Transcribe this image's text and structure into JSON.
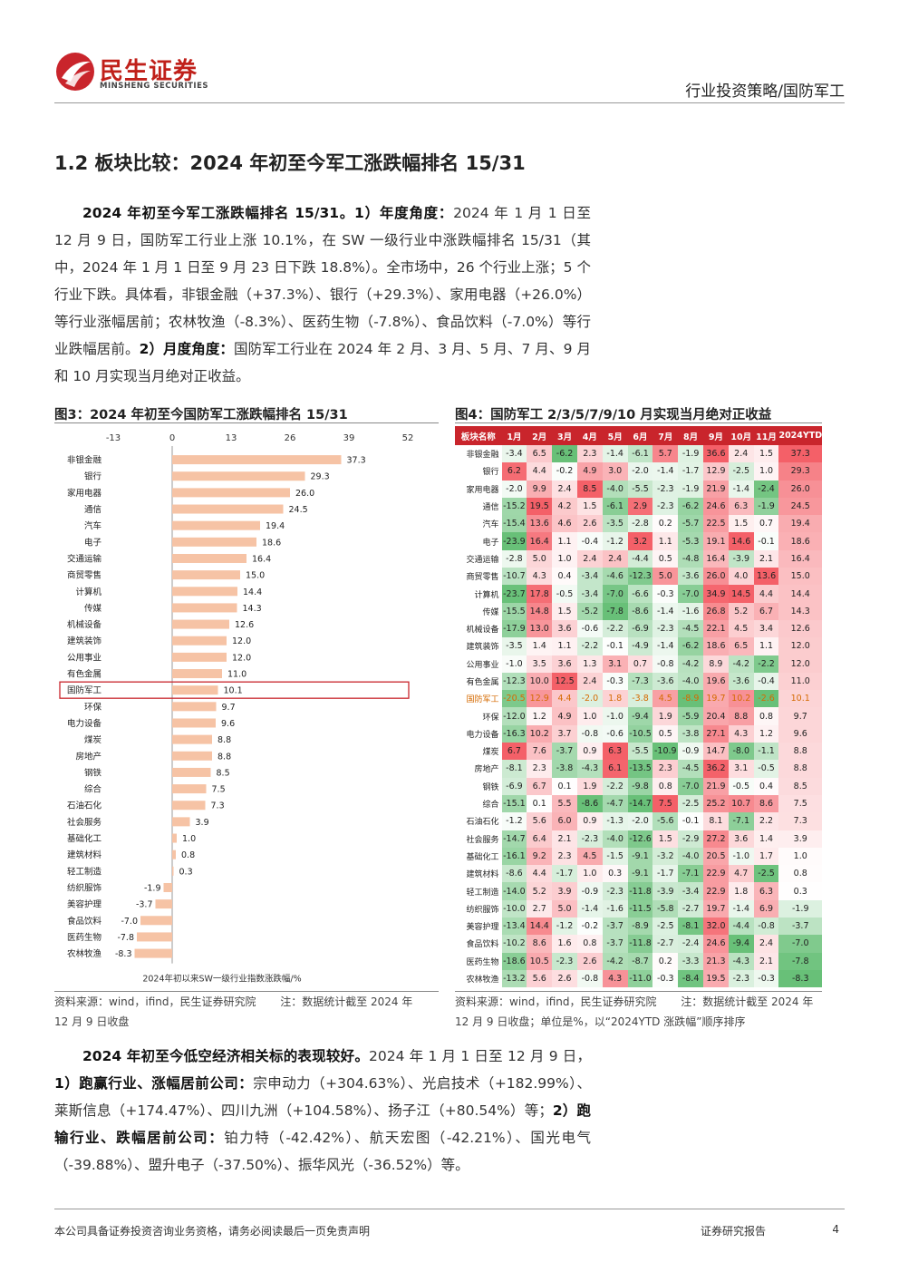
{
  "header": {
    "brand_cn": "民生证券",
    "brand_en": "MINSHENG SECURITIES",
    "category": "行业投资策略/国防军工"
  },
  "section_title": "1.2 板块比较：2024 年初至今军工涨跌幅排名 15/31",
  "para1": {
    "lead": "2024 年初至今军工涨跌幅排名 15/31。1）年度角度：",
    "body": "2024 年 1 月 1 日至 12 月 9 日，国防军工行业上涨 10.1%，在 SW 一级行业中涨跌幅排名 15/31（其中，2024 年 1 月 1 日至 9 月 23 日下跌 18.8%）。全市场中，26 个行业上涨；5 个行业下跌。具体看，非银金融（+37.3%）、银行（+29.3%）、家用电器（+26.0%）等行业涨幅居前；农林牧渔（-8.3%）、医药生物（-7.8%）、食品饮料（-7.0%）等行业跌幅居前。",
    "lead2": "2）月度角度：",
    "body2": "国防军工行业在 2024 年 2 月、3 月、5 月、7 月、9 月和 10 月实现当月绝对正收益。"
  },
  "fig3": {
    "title": "图3：2024 年初至今国防军工涨跌幅排名 15/31",
    "source": "资料来源：wind，ifind，民生证券研究院",
    "note": "注：数据统计截至 2024 年 12 月 9 日收盘"
  },
  "fig4": {
    "title": "图4：国防军工 2/3/5/7/9/10 月实现当月绝对正收益",
    "source": "资料来源：wind，ifind，民生证券研究院",
    "note": "注：数据统计截至 2024 年 12 月 9 日收盘；单位是%，以“2024YTD 涨跌幅”顺序排序"
  },
  "chart_data": [
    {
      "type": "bar",
      "orientation": "horizontal",
      "xlabel": "2024年初以来SW一级行业指数涨跌幅/%",
      "xlim": [
        -13,
        52
      ],
      "xticks": [
        -13,
        0,
        13,
        26,
        39,
        52
      ],
      "bar_color": "#f6c3a5",
      "highlight_color": "#c9252c",
      "highlight": "国防军工",
      "categories": [
        "非银金融",
        "银行",
        "家用电器",
        "通信",
        "汽车",
        "电子",
        "交通运输",
        "商贸零售",
        "计算机",
        "传媒",
        "机械设备",
        "建筑装饰",
        "公用事业",
        "有色金属",
        "国防军工",
        "环保",
        "电力设备",
        "煤炭",
        "房地产",
        "钢铁",
        "综合",
        "石油石化",
        "社会服务",
        "基础化工",
        "建筑材料",
        "轻工制造",
        "纺织服饰",
        "美容护理",
        "食品饮料",
        "医药生物",
        "农林牧渔"
      ],
      "values": [
        37.3,
        29.3,
        26.0,
        24.5,
        19.4,
        18.6,
        16.4,
        15.0,
        14.4,
        14.3,
        12.6,
        12.0,
        12.0,
        11.0,
        10.1,
        9.7,
        9.6,
        8.8,
        8.8,
        8.5,
        7.5,
        7.3,
        3.9,
        1.0,
        0.8,
        0.3,
        -1.9,
        -3.7,
        -7.0,
        -7.8,
        -8.3
      ]
    },
    {
      "type": "heatmap",
      "columns": [
        "板块名称",
        "1月",
        "2月",
        "3月",
        "4月",
        "5月",
        "6月",
        "7月",
        "8月",
        "9月",
        "10月",
        "11月",
        "2024YTD"
      ],
      "highlight_row": "国防军工",
      "rows": [
        [
          "非银金融",
          -3.4,
          6.5,
          -6.2,
          2.3,
          -1.4,
          -6.1,
          5.7,
          -1.9,
          36.6,
          2.4,
          1.5,
          37.3
        ],
        [
          "银行",
          6.2,
          4.4,
          -0.2,
          4.9,
          3.0,
          -2.0,
          -1.4,
          -1.7,
          12.9,
          -2.5,
          1.0,
          29.3
        ],
        [
          "家用电器",
          -2.0,
          9.9,
          2.4,
          8.5,
          -4.0,
          -5.5,
          -2.3,
          -1.9,
          21.9,
          -1.4,
          -2.4,
          26.0
        ],
        [
          "通信",
          -15.2,
          19.5,
          4.2,
          1.5,
          -6.1,
          2.9,
          -2.3,
          -6.2,
          24.6,
          6.3,
          -1.9,
          24.5
        ],
        [
          "汽车",
          -15.4,
          13.6,
          4.6,
          2.6,
          -3.5,
          -2.8,
          0.2,
          -5.7,
          22.5,
          1.5,
          0.7,
          19.4
        ],
        [
          "电子",
          -23.9,
          16.4,
          1.1,
          -0.4,
          -1.2,
          3.2,
          1.1,
          -5.3,
          19.1,
          14.6,
          -0.1,
          18.6
        ],
        [
          "交通运输",
          -2.8,
          5.0,
          1.0,
          2.4,
          2.4,
          -4.4,
          0.5,
          -4.8,
          16.4,
          -3.9,
          2.1,
          16.4
        ],
        [
          "商贸零售",
          -10.7,
          4.3,
          0.4,
          -3.4,
          -4.6,
          -12.3,
          5.0,
          -3.6,
          26.0,
          4.0,
          13.6,
          15.0
        ],
        [
          "计算机",
          -23.7,
          17.8,
          -0.5,
          -3.4,
          -7.0,
          -6.6,
          -0.3,
          -7.0,
          34.9,
          14.5,
          4.4,
          14.4
        ],
        [
          "传媒",
          -15.5,
          14.8,
          1.5,
          -5.2,
          -7.8,
          -8.6,
          -1.4,
          -1.6,
          26.8,
          5.2,
          6.7,
          14.3
        ],
        [
          "机械设备",
          -17.9,
          13.0,
          3.6,
          -0.6,
          -2.2,
          -6.9,
          -2.3,
          -4.5,
          22.1,
          4.5,
          3.4,
          12.6
        ],
        [
          "建筑装饰",
          -3.5,
          1.4,
          1.1,
          -2.2,
          -0.1,
          -4.9,
          -1.4,
          -6.2,
          18.6,
          6.5,
          1.1,
          12.0
        ],
        [
          "公用事业",
          -1.0,
          3.5,
          3.6,
          1.3,
          3.1,
          0.7,
          -0.8,
          -4.2,
          8.9,
          -4.2,
          -2.2,
          12.0
        ],
        [
          "有色金属",
          -12.3,
          10.0,
          12.5,
          2.4,
          -0.3,
          -7.3,
          -3.6,
          -4.0,
          19.6,
          -3.6,
          -0.4,
          11.0
        ],
        [
          "国防军工",
          -20.5,
          12.9,
          4.4,
          -2.0,
          1.8,
          -3.8,
          4.5,
          -8.9,
          19.7,
          10.2,
          -2.6,
          10.1
        ],
        [
          "环保",
          -12.0,
          1.2,
          4.9,
          1.0,
          -1.0,
          -9.4,
          1.9,
          -5.9,
          20.4,
          8.8,
          0.8,
          9.7
        ],
        [
          "电力设备",
          -16.3,
          10.2,
          3.7,
          -0.8,
          -0.6,
          -10.5,
          0.5,
          -3.8,
          27.1,
          4.3,
          1.2,
          9.6
        ],
        [
          "煤炭",
          6.7,
          7.6,
          -3.7,
          0.9,
          6.3,
          -5.5,
          -10.9,
          -0.9,
          14.7,
          -8.0,
          -1.1,
          8.8
        ],
        [
          "房地产",
          -8.1,
          2.3,
          -3.8,
          -4.3,
          6.1,
          -13.5,
          2.3,
          -4.5,
          36.2,
          3.1,
          -0.5,
          8.8
        ],
        [
          "钢铁",
          -6.9,
          6.7,
          0.1,
          1.9,
          -2.2,
          -9.8,
          0.8,
          -7.0,
          21.9,
          -0.5,
          0.4,
          8.5
        ],
        [
          "综合",
          -15.1,
          0.1,
          5.5,
          -8.6,
          -4.7,
          -14.7,
          7.5,
          -2.5,
          25.2,
          10.7,
          8.6,
          7.5
        ],
        [
          "石油石化",
          -1.2,
          5.6,
          6.0,
          0.9,
          -1.3,
          -2.0,
          -5.6,
          -0.1,
          8.1,
          -7.1,
          2.2,
          7.3
        ],
        [
          "社会服务",
          -14.7,
          6.4,
          2.1,
          -2.3,
          -4.0,
          -12.6,
          1.5,
          -2.9,
          27.2,
          3.6,
          1.4,
          3.9
        ],
        [
          "基础化工",
          -16.1,
          9.2,
          2.3,
          4.5,
          -1.5,
          -9.1,
          -3.2,
          -4.0,
          20.5,
          -1.0,
          1.7,
          1.0
        ],
        [
          "建筑材料",
          -8.6,
          4.4,
          -1.7,
          1.0,
          0.3,
          -9.1,
          -1.7,
          -7.1,
          22.9,
          4.7,
          -2.5,
          0.8
        ],
        [
          "轻工制造",
          -14.0,
          5.2,
          3.9,
          -0.9,
          -2.3,
          -11.8,
          -3.9,
          -3.4,
          22.9,
          1.8,
          6.3,
          0.3
        ],
        [
          "纺织服饰",
          -10.0,
          2.7,
          5.0,
          -1.4,
          -1.6,
          -11.5,
          -5.8,
          -2.7,
          19.7,
          -1.4,
          6.9,
          -1.9
        ],
        [
          "美容护理",
          -13.4,
          14.4,
          -1.2,
          -0.2,
          -3.7,
          -8.9,
          -2.5,
          -8.1,
          32.0,
          -4.4,
          -0.8,
          -3.7
        ],
        [
          "食品饮料",
          -10.2,
          8.6,
          1.6,
          0.8,
          -3.7,
          -11.8,
          -2.7,
          -2.4,
          24.6,
          -9.4,
          2.4,
          -7.0
        ],
        [
          "医药生物",
          -18.6,
          10.5,
          -2.3,
          2.6,
          -4.2,
          -8.7,
          0.2,
          -3.3,
          21.3,
          -4.3,
          2.1,
          -7.8
        ],
        [
          "农林牧渔",
          -13.2,
          5.6,
          2.6,
          -0.8,
          4.3,
          -11.0,
          -0.3,
          -8.4,
          19.5,
          -2.3,
          -0.3,
          -8.3
        ]
      ]
    }
  ],
  "para2": {
    "lead": "2024 年初至今低空经济相关标的表现较好。",
    "body1": "2024 年 1 月 1 日至 12 月 9 日，",
    "lead2": "1）跑赢行业、涨幅居前公司：",
    "body2": "宗申动力（+304.63%）、光启技术（+182.99%）、莱斯信息（+174.47%）、四川九洲（+104.58%）、扬子江（+80.54%）等；",
    "lead3": "2）跑输行业、跌幅居前公司：",
    "body3": "铂力特（-42.42%）、航天宏图（-42.21%）、国光电气（-39.88%）、盟升电子（-37.50%）、振华风光（-36.52%）等。"
  },
  "footer": {
    "disclaimer": "本公司具备证券投资咨询业务资格，请务必阅读最后一页免责声明",
    "type": "证券研究报告",
    "page": "4"
  }
}
